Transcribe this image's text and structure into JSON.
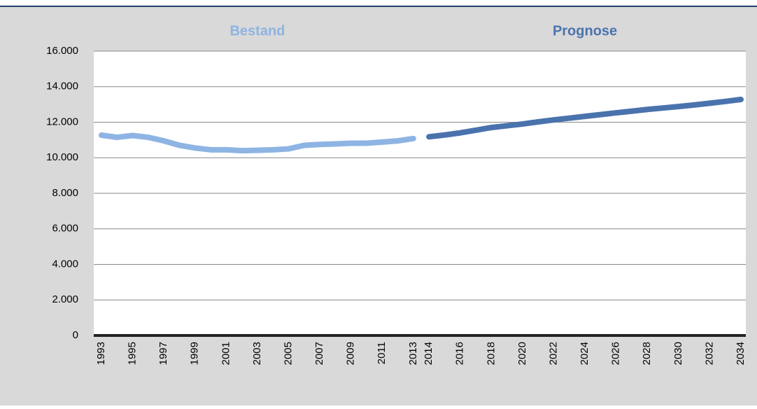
{
  "chart_data": {
    "type": "line",
    "categories": [
      "1993",
      null,
      "1995",
      null,
      "1997",
      null,
      "1999",
      null,
      "2001",
      null,
      "2003",
      null,
      "2005",
      null,
      "2007",
      null,
      "2009",
      null,
      "2011",
      null,
      "2013",
      "2014",
      null,
      "2016",
      null,
      "2018",
      null,
      "2020",
      null,
      "2022",
      null,
      "2024",
      null,
      "2026",
      null,
      "2028",
      null,
      "2030",
      null,
      "2032",
      null,
      "2034"
    ],
    "series": [
      {
        "name": "Bestand",
        "color": "#8eb4e3",
        "values": [
          11270,
          11150,
          11250,
          11150,
          10950,
          10700,
          10550,
          10450,
          10450,
          10400,
          10420,
          10450,
          10500,
          10700,
          10750,
          10780,
          10820,
          10820,
          10880,
          10950,
          11080,
          null,
          null,
          null,
          null,
          null,
          null,
          null,
          null,
          null,
          null,
          null,
          null,
          null,
          null,
          null,
          null,
          null,
          null,
          null,
          null,
          null
        ]
      },
      {
        "name": "Prognose",
        "color": "#4a73ad",
        "values": [
          null,
          null,
          null,
          null,
          null,
          null,
          null,
          null,
          null,
          null,
          null,
          null,
          null,
          null,
          null,
          null,
          null,
          null,
          null,
          null,
          null,
          11180,
          11280,
          11400,
          11550,
          11700,
          11800,
          11900,
          12020,
          12130,
          12230,
          12330,
          12430,
          12530,
          12620,
          12720,
          12800,
          12880,
          12970,
          13070,
          13170,
          13280
        ]
      }
    ],
    "ylim": [
      0,
      16000
    ],
    "yticks": [
      0,
      {
        "value": 2000,
        "label": "2.000"
      },
      {
        "value": 4000,
        "label": "4.000"
      },
      {
        "value": 6000,
        "label": "6.000"
      },
      {
        "value": 8000,
        "label": "8.000"
      },
      {
        "value": 10000,
        "label": "10.000"
      },
      {
        "value": 12000,
        "label": "12.000"
      },
      {
        "value": 14000,
        "label": "14.000"
      },
      {
        "value": 16000,
        "label": "16.000"
      }
    ],
    "grid": true
  }
}
